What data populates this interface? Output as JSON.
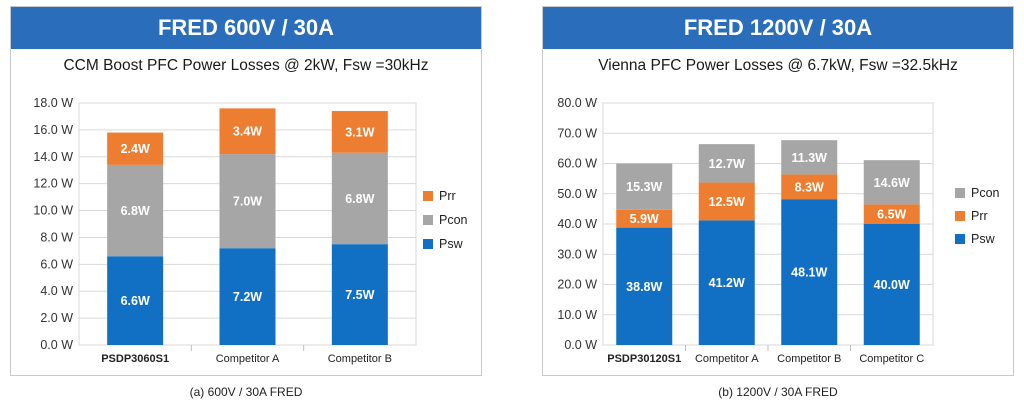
{
  "panels": [
    {
      "banner": "FRED 600V / 30A",
      "subtitle": "CCM Boost PFC Power Losses @ 2kW, Fsw =30kHz",
      "caption": "(a) 600V / 30A FRED"
    },
    {
      "banner": "FRED 1200V / 30A",
      "subtitle": "Vienna PFC Power Losses @ 6.7kW, Fsw =32.5kHz",
      "caption": "(b) 1200V / 30A FRED"
    }
  ],
  "chart_data": [
    {
      "type": "bar",
      "stacked": true,
      "title": "CCM Boost PFC Power Losses @ 2kW, Fsw =30kHz",
      "categories": [
        "PSDP3060S1",
        "Competitor A",
        "Competitor B"
      ],
      "series": [
        {
          "name": "Psw",
          "color": "#1170c4",
          "values": [
            6.6,
            7.2,
            7.5
          ],
          "labels": [
            "6.6W",
            "7.2W",
            "7.5W"
          ]
        },
        {
          "name": "Pcon",
          "color": "#a6a6a6",
          "values": [
            6.8,
            7.0,
            6.8
          ],
          "labels": [
            "6.8W",
            "7.0W",
            "6.8W"
          ]
        },
        {
          "name": "Prr",
          "color": "#ed7d31",
          "values": [
            2.4,
            3.4,
            3.1
          ],
          "labels": [
            "2.4W",
            "3.4W",
            "3.1W"
          ]
        }
      ],
      "ylim": [
        0,
        18
      ],
      "yticks": [
        "0.0 W",
        "2.0 W",
        "4.0 W",
        "6.0 W",
        "8.0 W",
        "10.0 W",
        "12.0 W",
        "14.0 W",
        "16.0 W",
        "18.0 W"
      ],
      "grid": true,
      "legend": {
        "placement": "right",
        "order": [
          "Prr",
          "Pcon",
          "Psw"
        ]
      }
    },
    {
      "type": "bar",
      "stacked": true,
      "title": "Vienna PFC Power Losses @ 6.7kW, Fsw =32.5kHz",
      "categories": [
        "PSDP30120S1",
        "Competitor A",
        "Competitor B",
        "Competitor C"
      ],
      "series": [
        {
          "name": "Psw",
          "color": "#1170c4",
          "values": [
            38.8,
            41.2,
            48.1,
            40.0
          ],
          "labels": [
            "38.8W",
            "41.2W",
            "48.1W",
            "40.0W"
          ]
        },
        {
          "name": "Prr",
          "color": "#ed7d31",
          "values": [
            5.9,
            12.5,
            8.3,
            6.5
          ],
          "labels": [
            "5.9W",
            "12.5W",
            "8.3W",
            "6.5W"
          ]
        },
        {
          "name": "Pcon",
          "color": "#a6a6a6",
          "values": [
            15.3,
            12.7,
            11.3,
            14.6
          ],
          "labels": [
            "15.3W",
            "12.7W",
            "11.3W",
            "14.6W"
          ]
        }
      ],
      "ylim": [
        0,
        80
      ],
      "yticks": [
        "0.0 W",
        "10.0 W",
        "20.0 W",
        "30.0 W",
        "40.0 W",
        "50.0 W",
        "60.0 W",
        "70.0 W",
        "80.0 W"
      ],
      "grid": true,
      "legend": {
        "placement": "right",
        "order": [
          "Pcon",
          "Prr",
          "Psw"
        ]
      }
    }
  ]
}
